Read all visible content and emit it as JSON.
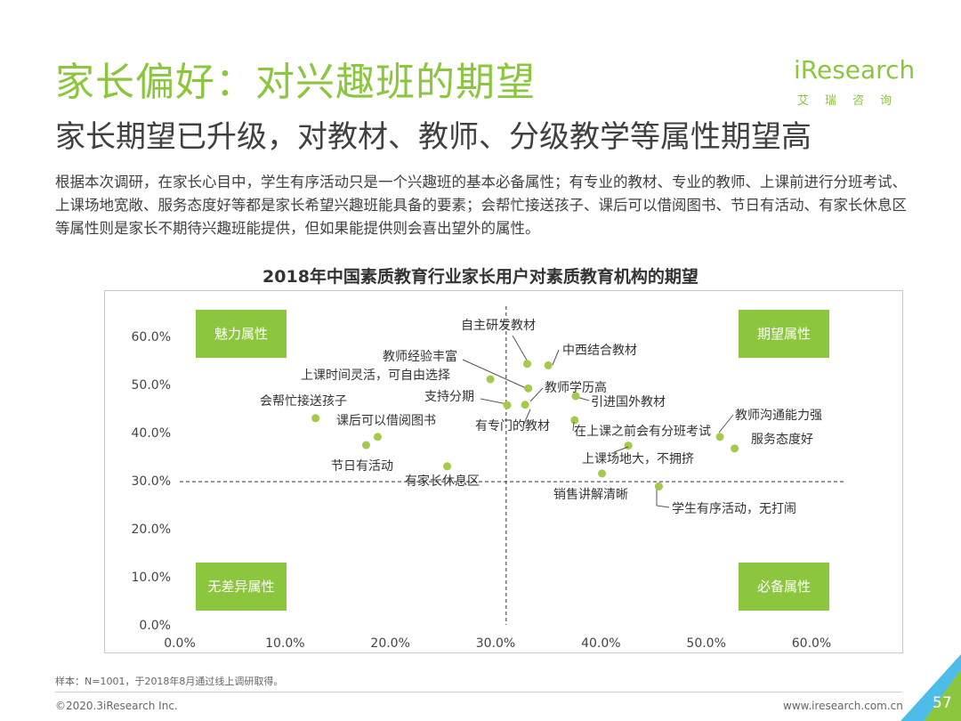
{
  "header": {
    "title": "家长偏好：对兴趣班的期望",
    "subtitle": "家长期望已升级，对教材、教师、分级教学等属性期望高",
    "description": "根据本次调研，在家长心目中，学生有序活动只是一个兴趣班的基本必备属性；有专业的教材、专业的教师、上课前进行分班考试、上课场地宽敞、服务态度好等都是家长希望兴趣班能具备的要素；会帮忙接送孩子、课后可以借阅图书、节日有活动、有家长休息区等属性则是家长不期待兴趣班能提供，但如果能提供则会喜出望外的属性。"
  },
  "logo": {
    "name": "iResearch",
    "sub": "艾瑞咨询"
  },
  "colors": {
    "accent": "#8cc63f",
    "point": "#a5c94a",
    "quadrant_box": "#8cc63f"
  },
  "chart_data": {
    "type": "scatter",
    "title": "2018年中国素质教育行业家长用户对素质教育机构的期望",
    "xlim": [
      0,
      60
    ],
    "ylim": [
      0,
      60
    ],
    "x_ticks": [
      "0.0%",
      "10.0%",
      "20.0%",
      "30.0%",
      "40.0%",
      "50.0%",
      "60.0%"
    ],
    "y_ticks": [
      "0.0%",
      "10.0%",
      "20.0%",
      "30.0%",
      "40.0%",
      "50.0%",
      "60.0%"
    ],
    "divider_x": 31.0,
    "divider_y": 29.8,
    "quadrants": {
      "top_left": "魅力属性",
      "top_right": "期望属性",
      "bottom_left": "无差异属性",
      "bottom_right": "必备属性"
    },
    "points": [
      {
        "label": "自主研发教材",
        "x": 33.0,
        "y": 54.3
      },
      {
        "label": "中西结合教材",
        "x": 35.0,
        "y": 54.0
      },
      {
        "label": "教师经验丰富",
        "x": 33.1,
        "y": 49.2
      },
      {
        "label": "上课时间灵活，可自由选择",
        "x": 29.5,
        "y": 51.1
      },
      {
        "label": "教师学历高",
        "x": 32.8,
        "y": 45.8
      },
      {
        "label": "支持分期",
        "x": 31.1,
        "y": 45.7
      },
      {
        "label": "引进国外教材",
        "x": 37.6,
        "y": 47.6
      },
      {
        "label": "会帮忙接送孩子",
        "x": 12.9,
        "y": 43.0
      },
      {
        "label": "课后可以借阅图书",
        "x": 18.8,
        "y": 39.1
      },
      {
        "label": "有专门的教材",
        "x": 37.5,
        "y": 42.6
      },
      {
        "label": "教师沟通能力强",
        "x": 51.3,
        "y": 39.1
      },
      {
        "label": "在上课之前会有分班考试",
        "x": 42.6,
        "y": 37.3
      },
      {
        "label": "服务态度好",
        "x": 52.7,
        "y": 36.7
      },
      {
        "label": "节日有活动",
        "x": 17.7,
        "y": 37.4
      },
      {
        "label": "上课场地大，不拥挤",
        "x": 40.1,
        "y": 31.5
      },
      {
        "label": "有家长休息区",
        "x": 25.4,
        "y": 33.0
      },
      {
        "label": "销售讲解清晰",
        "x": 45.5,
        "y": 28.8
      },
      {
        "label": "学生有序活动，无打闹",
        "x": 45.5,
        "y": 28.8
      }
    ]
  },
  "footer": {
    "note": "样本：N=1001，于2018年8月通过线上调研取得。",
    "copyright": "©2020.3iResearch Inc.",
    "website": "www.iresearch.com.cn",
    "page": "57"
  }
}
